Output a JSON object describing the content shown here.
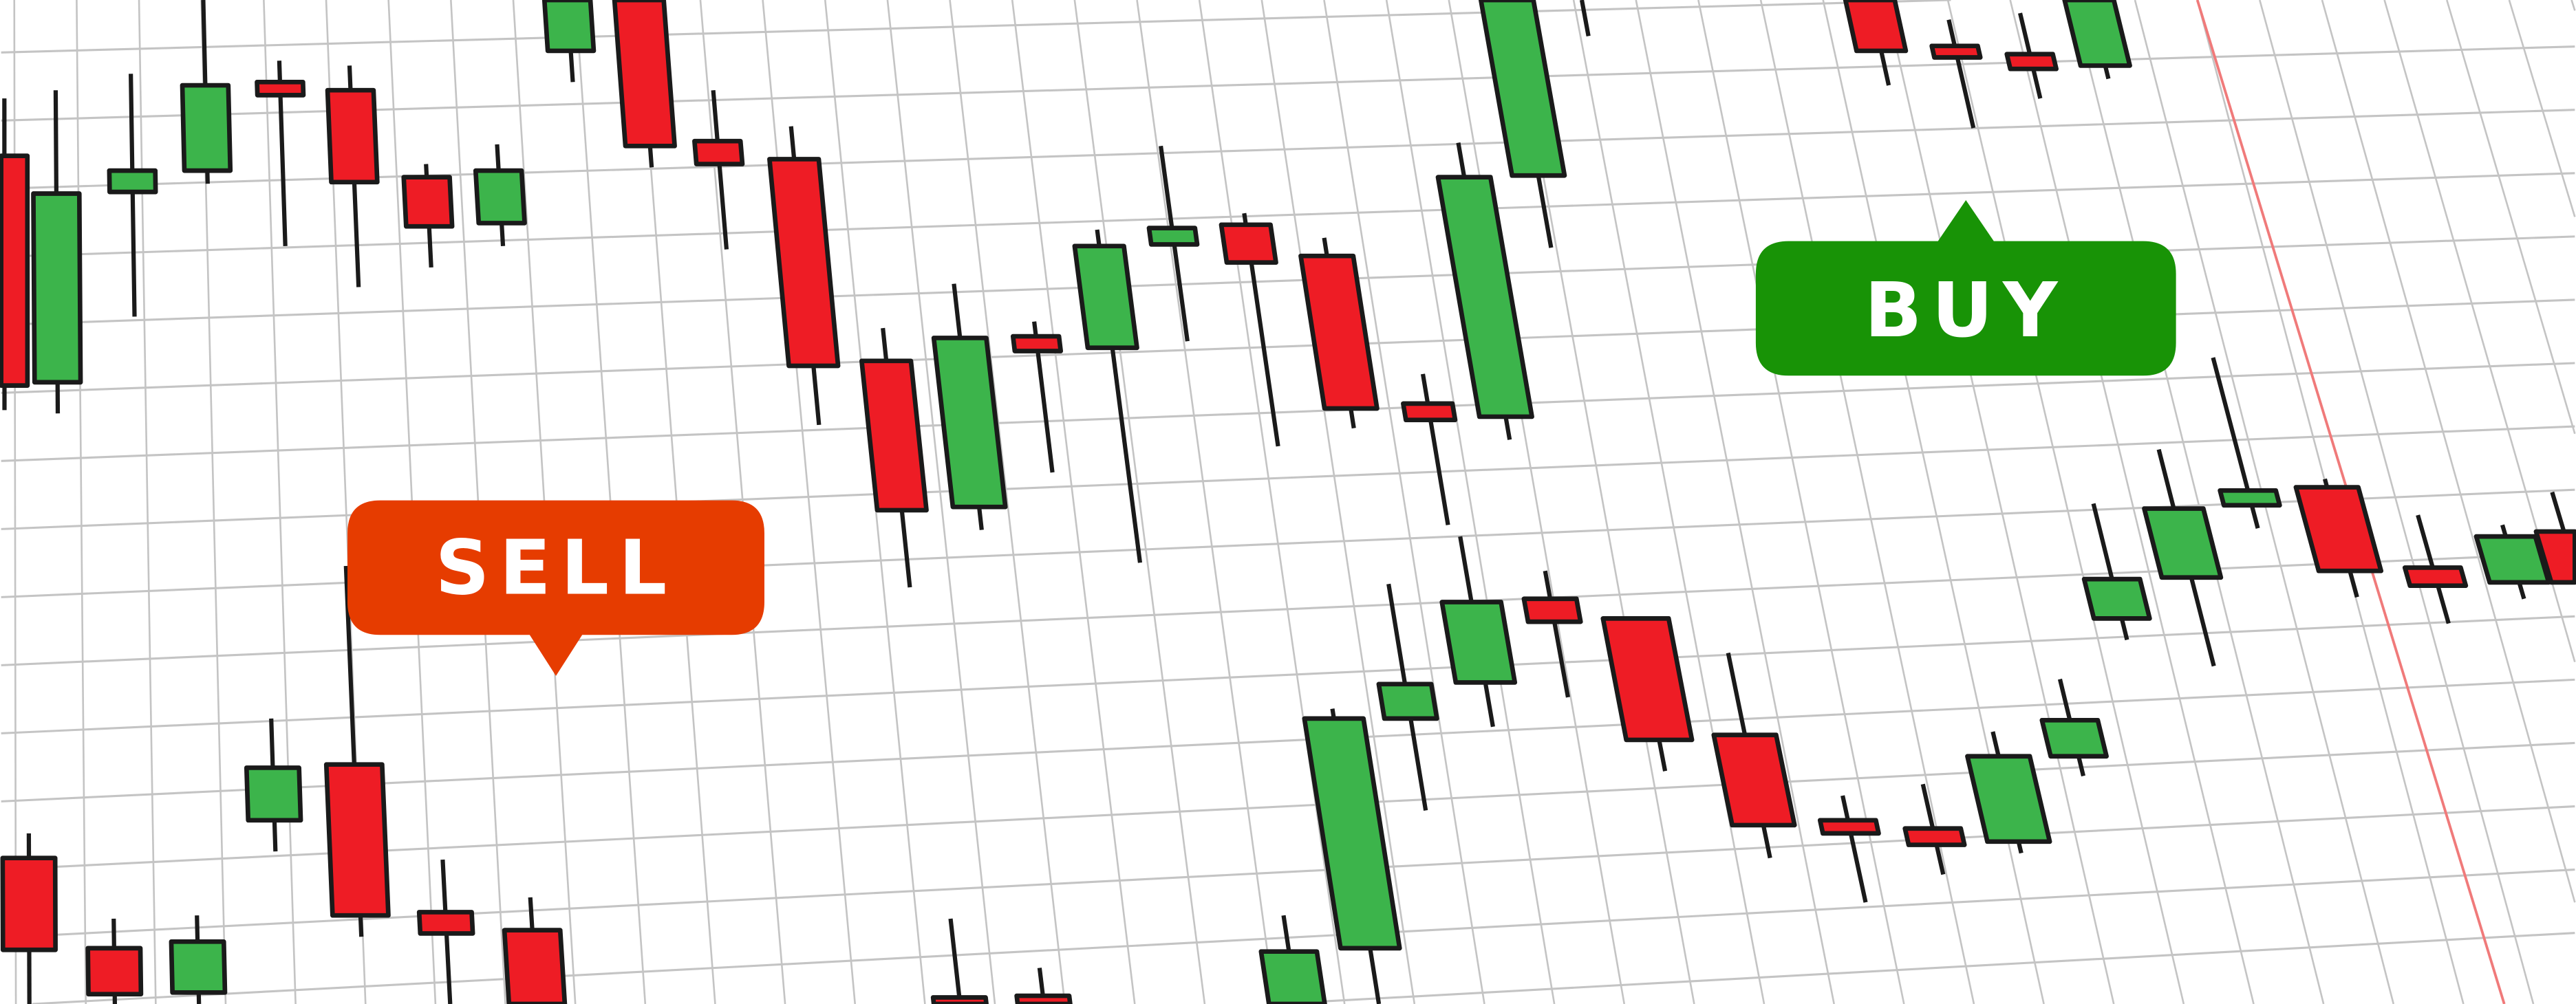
{
  "labels": {
    "sell": "SELL",
    "buy": "BUY"
  },
  "colors": {
    "background": "#ffffff",
    "grid": "#c4c4c4",
    "bullish_candle": "#3cb44b",
    "bearish_candle": "#ee1c25",
    "candle_outline": "#1a1a1a",
    "sell_bubble": "#e63c00",
    "buy_bubble": "#189306",
    "marker_line": "#f07a7a"
  }
}
